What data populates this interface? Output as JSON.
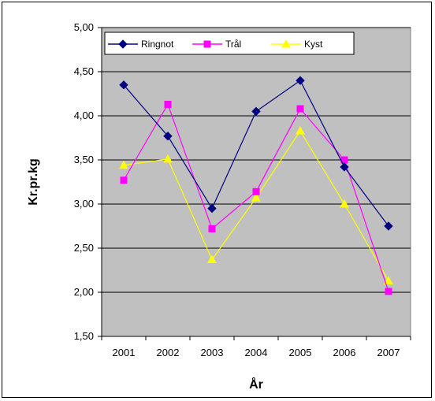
{
  "chart_data": {
    "type": "line",
    "title": "",
    "xlabel": "År",
    "ylabel": "Kr.pr.kg",
    "categories": [
      "2001",
      "2002",
      "2003",
      "2004",
      "2005",
      "2006",
      "2007"
    ],
    "y_ticks": [
      "1,50",
      "2,00",
      "2,50",
      "3,00",
      "3,50",
      "4,00",
      "4,50",
      "5,00"
    ],
    "ylim": [
      1.5,
      5.0
    ],
    "grid": true,
    "plot_background": "#C0C0C0",
    "legend_position": "top",
    "series": [
      {
        "name": "Ringnot",
        "color": "#000080",
        "marker": "diamond",
        "values": [
          4.35,
          3.77,
          2.95,
          4.05,
          4.4,
          3.42,
          2.75
        ]
      },
      {
        "name": "Trål",
        "color": "#FF00FF",
        "marker": "square",
        "values": [
          3.27,
          4.13,
          2.72,
          3.14,
          4.08,
          3.5,
          2.01
        ]
      },
      {
        "name": "Kyst",
        "color": "#FFFF00",
        "marker": "triangle",
        "values": [
          3.44,
          3.51,
          2.37,
          3.07,
          3.83,
          3.0,
          2.13
        ]
      }
    ]
  }
}
